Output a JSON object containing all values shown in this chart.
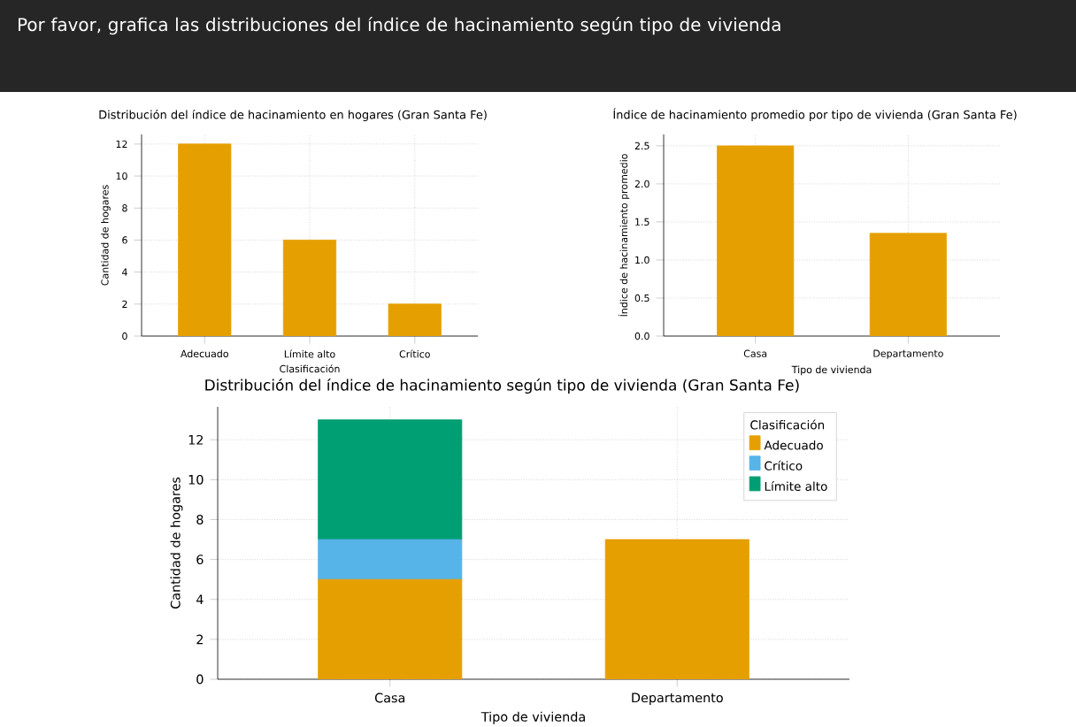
{
  "chart_data": [
    {
      "type": "other",
      "title": "Por favor, grafica las distribuciones del índice de hacinamiento según tipo de vivienda"
    },
    {
      "type": "bar",
      "title": "Distribución del índice de hacinamiento en hogares (Gran Santa Fe)",
      "xlabel": "Clasificación",
      "ylabel": "Cantidad de hogares",
      "categories": [
        "Adecuado",
        "Límite alto",
        "Crítico"
      ],
      "values": [
        12,
        6,
        2
      ],
      "color": "#e69f00",
      "ylim": [
        0,
        12.6
      ],
      "yticks": [
        0,
        2,
        4,
        6,
        8,
        10,
        12
      ],
      "grid": true,
      "legend": false
    },
    {
      "type": "bar",
      "title": "Índice de hacinamiento promedio por tipo de vivienda (Gran Santa Fe)",
      "xlabel": "Tipo de vivienda",
      "ylabel": "Índice de hacinamiento promedio",
      "categories": [
        "Casa",
        "Departamento"
      ],
      "values": [
        2.5,
        1.35
      ],
      "color": "#e69f00",
      "ylim": [
        0,
        2.65
      ],
      "yticks": [
        {
          "value": 0,
          "label": "0.0"
        },
        {
          "value": 0.5,
          "label": "0.5"
        },
        {
          "value": 1,
          "label": "1.0"
        },
        {
          "value": 1.5,
          "label": "1.5"
        },
        {
          "value": 2,
          "label": "2.0"
        },
        {
          "value": 2.5,
          "label": "2.5"
        }
      ],
      "grid": true,
      "legend": false
    },
    {
      "type": "bar",
      "stacked": true,
      "title": "Distribución del índice de hacinamiento según tipo de vivienda (Gran Santa Fe)",
      "xlabel": "Tipo de vivienda",
      "ylabel": "Cantidad de hogares",
      "legend_title": "Clasificación",
      "categories": [
        "Casa",
        "Departamento"
      ],
      "series": [
        {
          "name": "Adecuado",
          "color": "#e69f00",
          "values": [
            5,
            7
          ]
        },
        {
          "name": "Crítico",
          "color": "#56b4e9",
          "values": [
            2,
            0
          ]
        },
        {
          "name": "Límite alto",
          "color": "#009e73",
          "values": [
            6,
            0
          ]
        }
      ],
      "ylim": [
        0,
        13.65
      ],
      "yticks": [
        0,
        2,
        4,
        6,
        8,
        10,
        12
      ],
      "grid": true,
      "legend": "top right"
    }
  ]
}
